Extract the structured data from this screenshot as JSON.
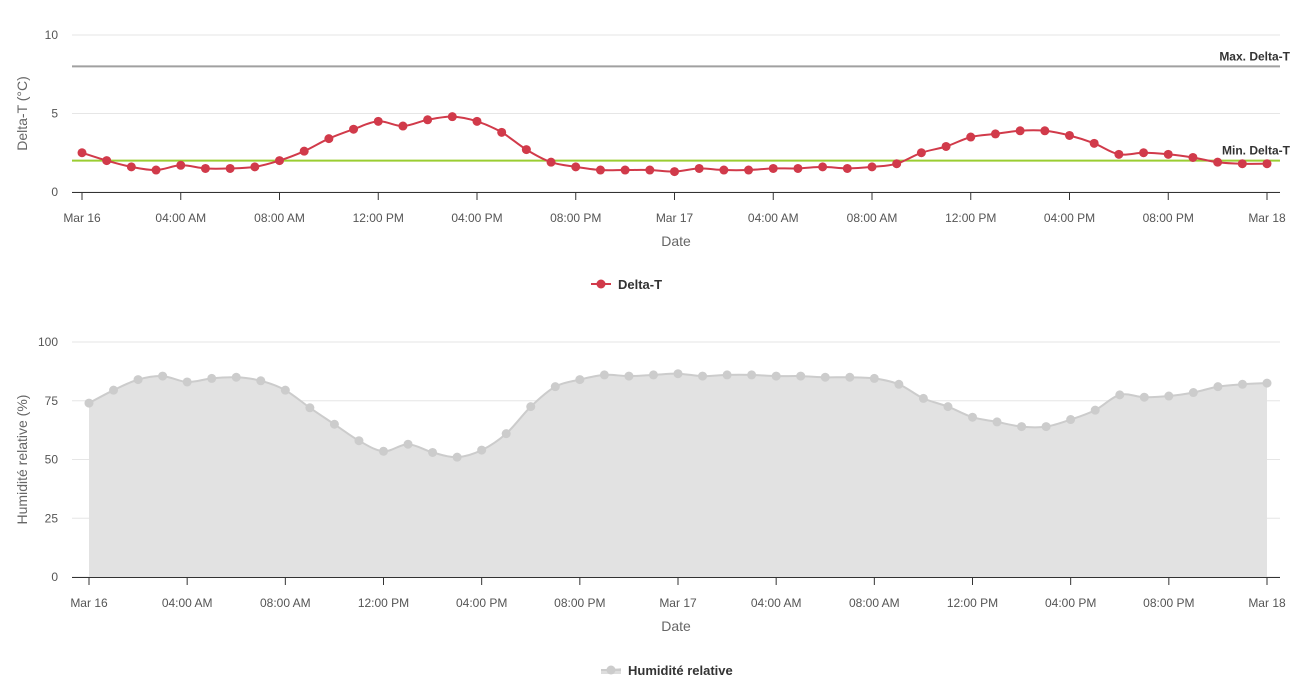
{
  "chart_data": [
    {
      "type": "line",
      "xlabel": "Date",
      "ylabel": "Delta-T (°C)",
      "ylim": [
        0,
        10
      ],
      "yticks": [
        "0",
        "5",
        "10"
      ],
      "xticks": [
        "Mar 16",
        "04:00 AM",
        "08:00 AM",
        "12:00 PM",
        "04:00 PM",
        "08:00 PM",
        "Mar 17",
        "04:00 AM",
        "08:00 AM",
        "12:00 PM",
        "04:00 PM",
        "08:00 PM",
        "Mar 18"
      ],
      "x_unit": "hours since Mar 16 00:00",
      "grid": true,
      "legend": "bottom-center",
      "series": [
        {
          "name": "Delta-T",
          "color": "#d13a4a",
          "values": [
            2.5,
            2.0,
            1.6,
            1.4,
            1.7,
            1.5,
            1.5,
            1.6,
            2.0,
            2.6,
            3.4,
            4.0,
            4.5,
            4.2,
            4.6,
            4.8,
            4.5,
            3.8,
            2.7,
            1.9,
            1.6,
            1.4,
            1.4,
            1.4,
            1.3,
            1.5,
            1.4,
            1.4,
            1.5,
            1.5,
            1.6,
            1.5,
            1.6,
            1.8,
            2.5,
            2.9,
            3.5,
            3.7,
            3.9,
            3.9,
            3.6,
            3.1,
            2.4,
            2.5,
            2.4,
            2.2,
            1.9,
            1.8,
            1.8
          ]
        }
      ],
      "reference_lines": [
        {
          "label": "Max. Delta-T",
          "value": 8,
          "color": "#a0a0a0"
        },
        {
          "label": "Min. Delta-T",
          "value": 2,
          "color": "#9acd32"
        }
      ]
    },
    {
      "type": "area",
      "xlabel": "Date",
      "ylabel": "Humidité relative (%)",
      "ylim": [
        0,
        100
      ],
      "yticks": [
        "0",
        "25",
        "50",
        "75",
        "100"
      ],
      "xticks": [
        "Mar 16",
        "04:00 AM",
        "08:00 AM",
        "12:00 PM",
        "04:00 PM",
        "08:00 PM",
        "Mar 17",
        "04:00 AM",
        "08:00 AM",
        "12:00 PM",
        "04:00 PM",
        "08:00 PM",
        "Mar 18"
      ],
      "x_unit": "hours since Mar 16 00:00",
      "grid": true,
      "legend": "bottom-center",
      "series": [
        {
          "name": "Humidité relative",
          "color": "#cccccc",
          "values": [
            74,
            79.5,
            84,
            85.5,
            83,
            84.5,
            85,
            83.5,
            79.5,
            72,
            65,
            58,
            53.5,
            56.5,
            53,
            51,
            54,
            61,
            72.5,
            81,
            84,
            86,
            85.5,
            86,
            86.5,
            85.5,
            86,
            86,
            85.5,
            85.5,
            85,
            85,
            84.5,
            82,
            76,
            72.5,
            68,
            66,
            64,
            64,
            67,
            71,
            77.5,
            76.5,
            77,
            78.5,
            81,
            82,
            82.5
          ]
        }
      ]
    }
  ]
}
